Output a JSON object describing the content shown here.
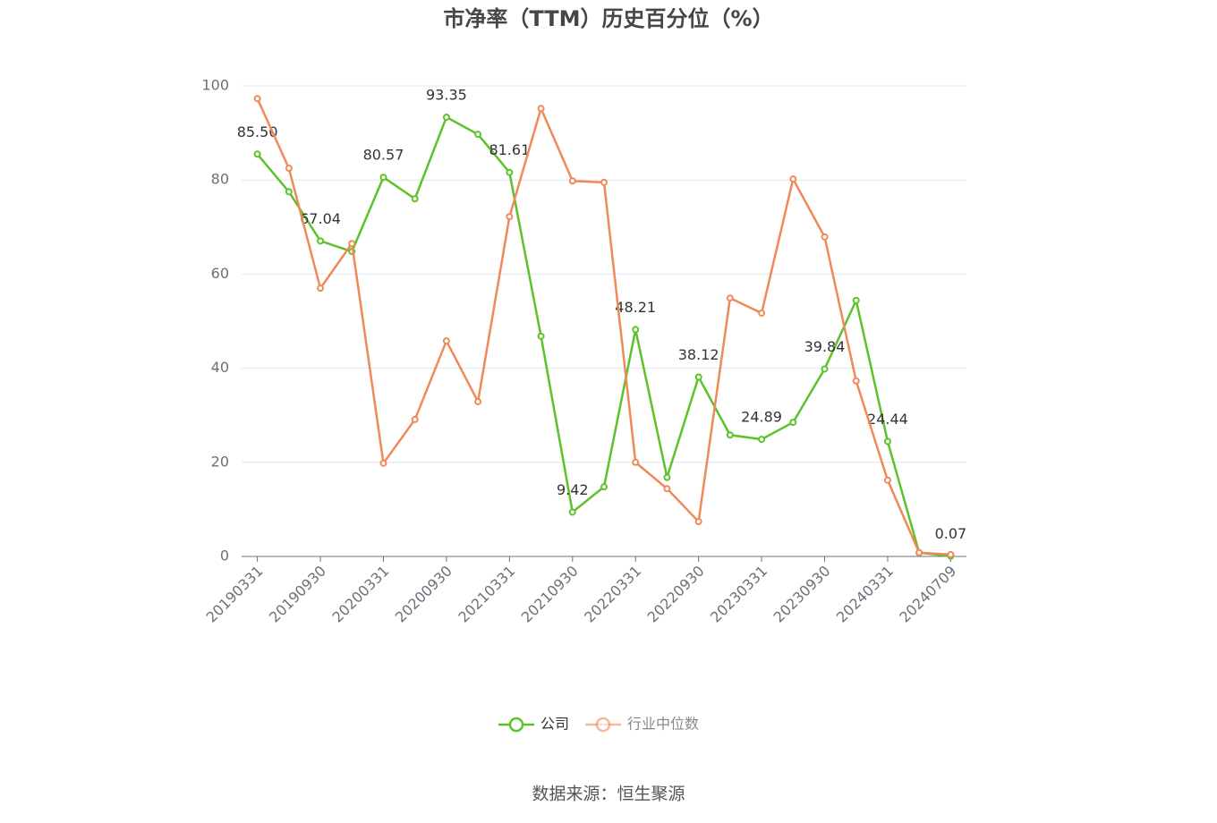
{
  "chart_data": {
    "type": "line",
    "title": "市净率（TTM）历史百分位（%）",
    "categories": [
      "20190331",
      null,
      "20190930",
      null,
      "20200331",
      null,
      "20200930",
      null,
      "20210331",
      null,
      "20210930",
      null,
      "20220331",
      null,
      "20220930",
      null,
      "20230331",
      null,
      "20230930",
      null,
      "20240331",
      null,
      "20240709"
    ],
    "series": [
      {
        "name": "公司",
        "color": "#5cc22a",
        "values": [
          85.5,
          77.5,
          67.04,
          64.8,
          80.57,
          76.0,
          93.35,
          89.7,
          81.61,
          46.8,
          9.42,
          14.8,
          48.21,
          16.8,
          38.12,
          25.8,
          24.89,
          28.5,
          39.84,
          54.4,
          24.44,
          0.8,
          0.07
        ],
        "value_labels": [
          "85.50",
          null,
          "67.04",
          null,
          "80.57",
          null,
          "93.35",
          null,
          "81.61",
          null,
          "9.42",
          null,
          "48.21",
          null,
          "38.12",
          null,
          "24.89",
          null,
          "39.84",
          null,
          "24.44",
          null,
          "0.07"
        ]
      },
      {
        "name": "行业中位数",
        "color": "#f0895a",
        "values": [
          97.3,
          82.5,
          57.0,
          66.5,
          19.8,
          29.1,
          45.8,
          32.9,
          72.2,
          95.2,
          79.8,
          79.5,
          20.0,
          14.4,
          7.4,
          54.9,
          51.7,
          80.2,
          67.9,
          37.3,
          16.2,
          0.8,
          0.4
        ]
      }
    ],
    "ylim": [
      0,
      100
    ],
    "yticks": [
      0,
      20,
      40,
      60,
      80,
      100
    ],
    "grid": true,
    "legend": "bottom",
    "source": "数据来源：恒生聚源"
  }
}
